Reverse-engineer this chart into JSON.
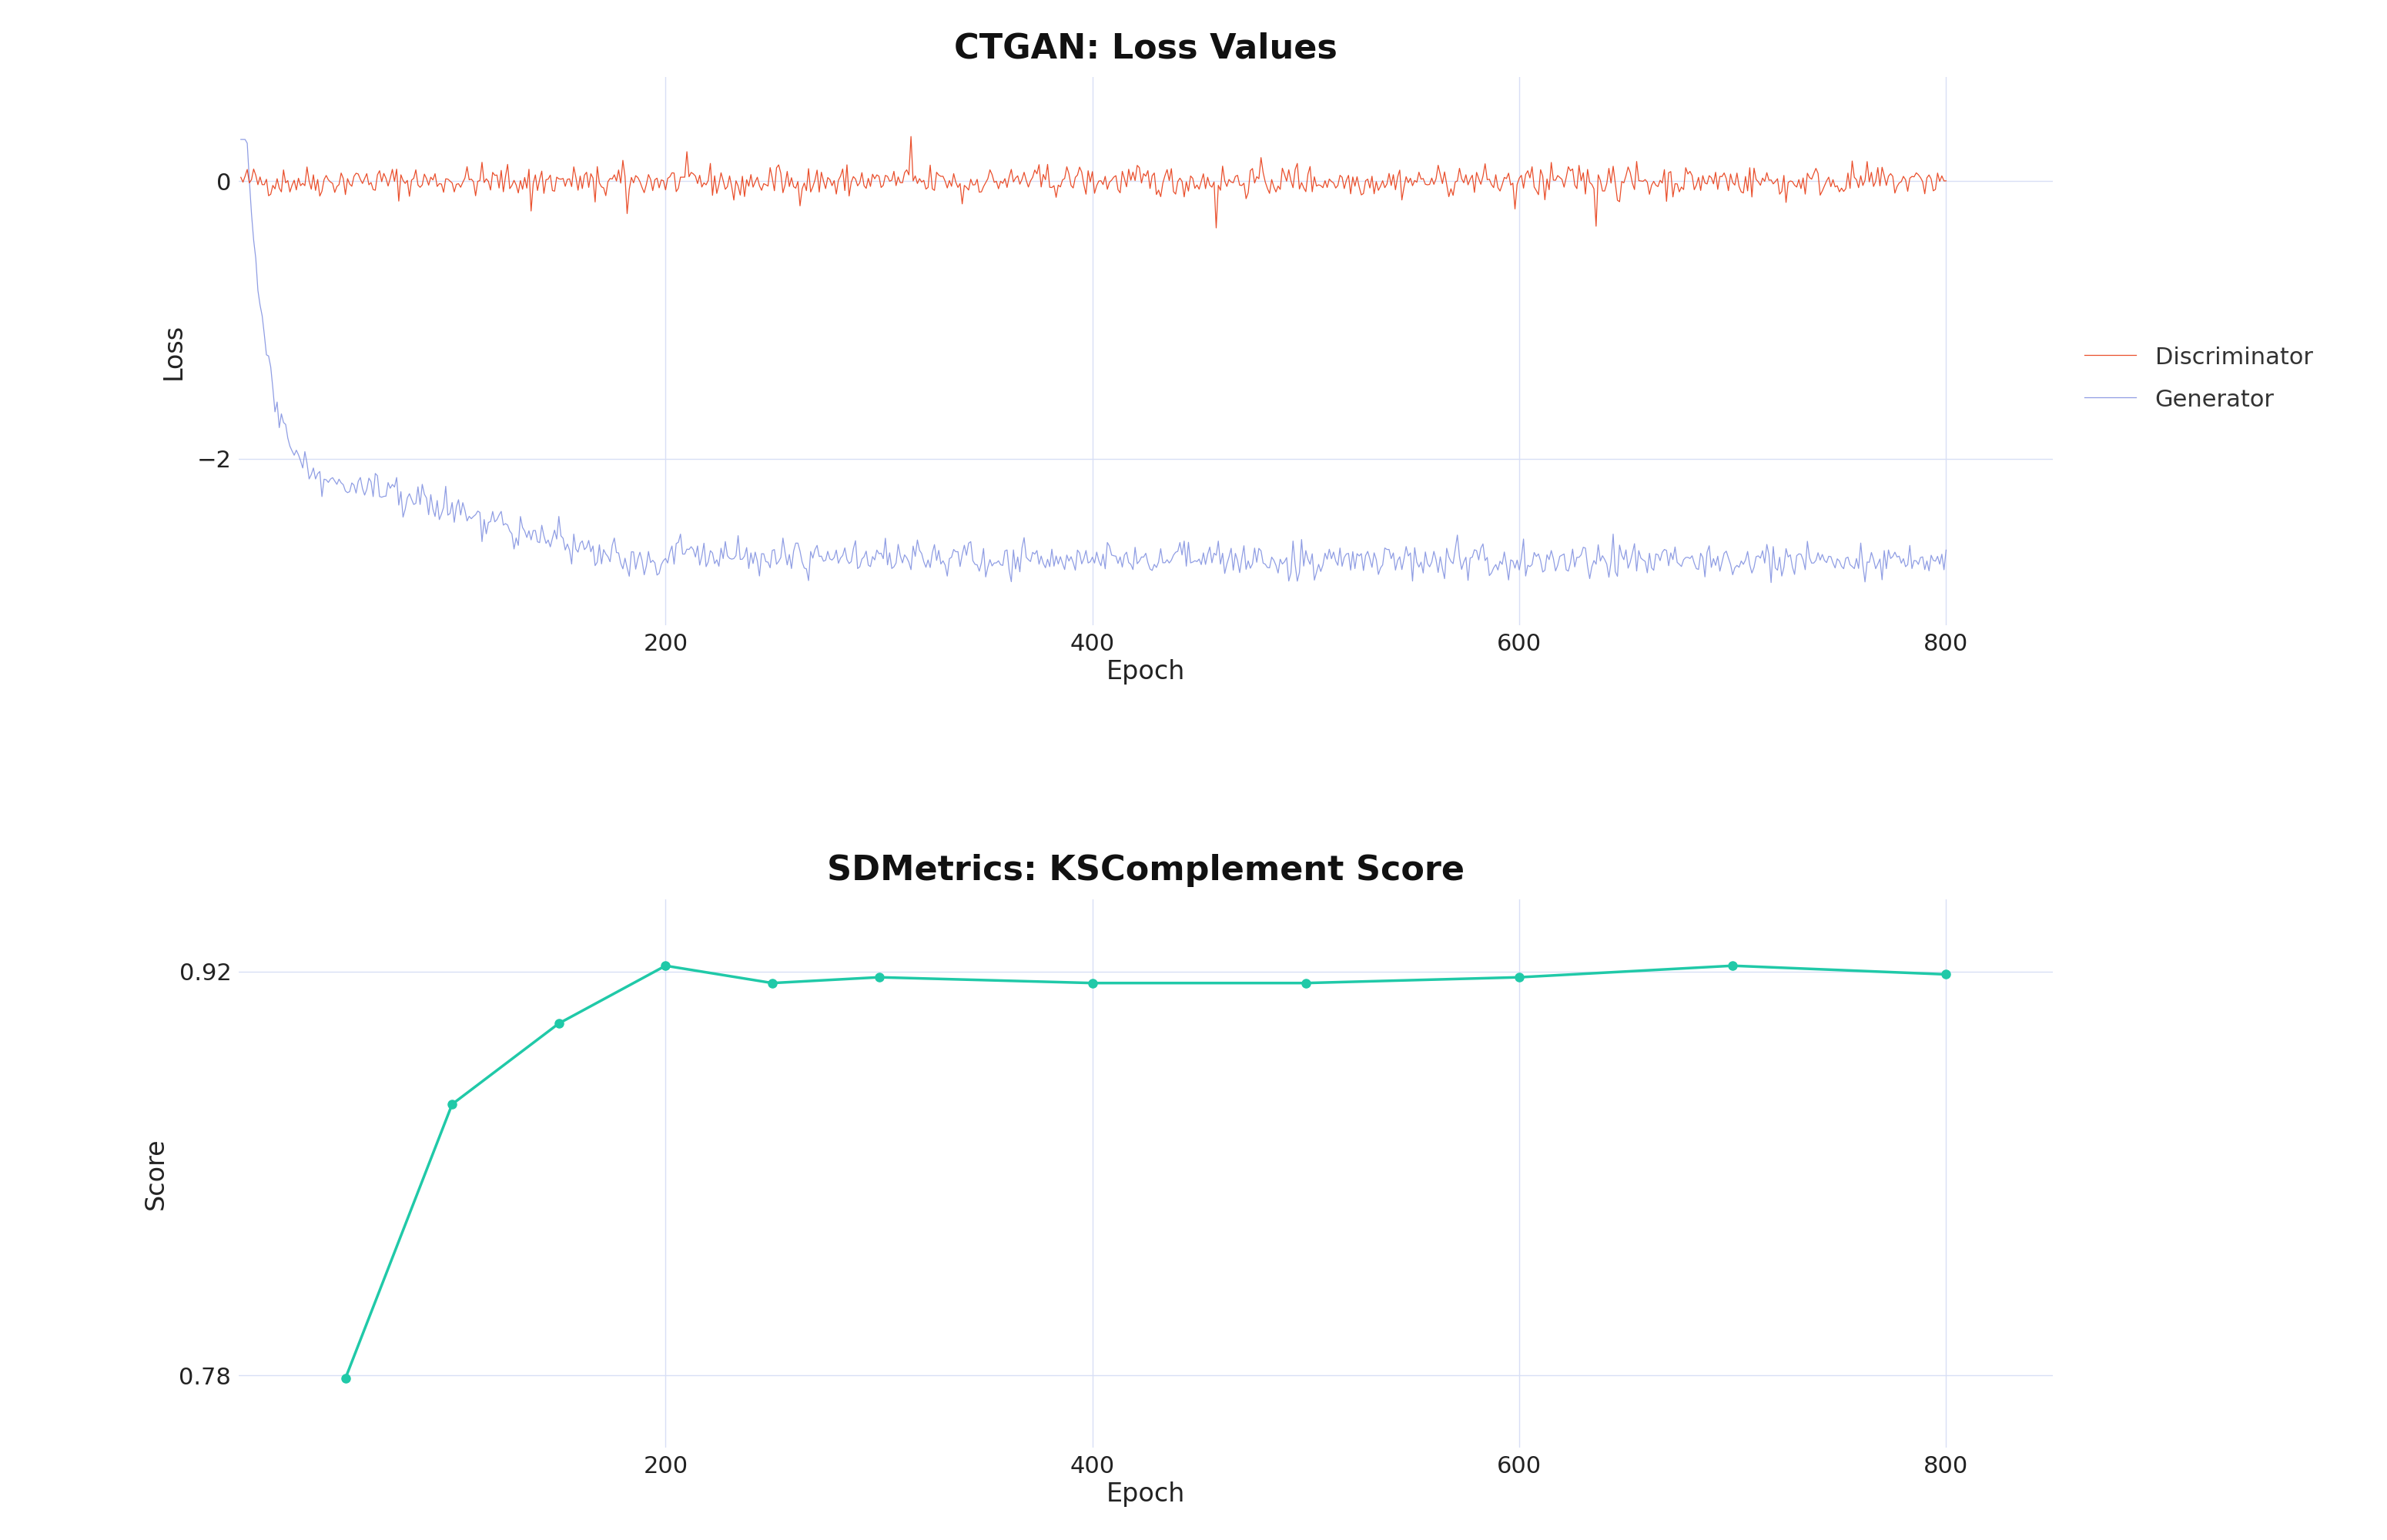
{
  "title1": "CTGAN: Loss Values",
  "title2": "SDMetrics: KSComplement Score",
  "xlabel": "Epoch",
  "ylabel1": "Loss",
  "ylabel2": "Score",
  "epochs": 800,
  "disc_color": "#e8401a",
  "gen_color": "#8090e0",
  "ks_color": "#20c9a8",
  "background_color": "#ffffff",
  "grid_color": "#d8dff5",
  "legend_disc": "Discriminator",
  "legend_gen": "Generator",
  "loss_ylim": [
    -3.2,
    0.75
  ],
  "loss_yticks": [
    0.0,
    -2.0
  ],
  "ks_ylim": [
    0.755,
    0.945
  ],
  "ks_yticks": [
    0.78,
    0.92
  ],
  "xticks": [
    200,
    400,
    600,
    800
  ],
  "title_fontsize": 32,
  "label_fontsize": 24,
  "tick_fontsize": 22,
  "legend_fontsize": 22,
  "ks_x": [
    50,
    100,
    150,
    200,
    250,
    300,
    400,
    500,
    600,
    700,
    800
  ],
  "ks_y": [
    0.779,
    0.874,
    0.902,
    0.922,
    0.916,
    0.918,
    0.916,
    0.916,
    0.918,
    0.922,
    0.919
  ]
}
